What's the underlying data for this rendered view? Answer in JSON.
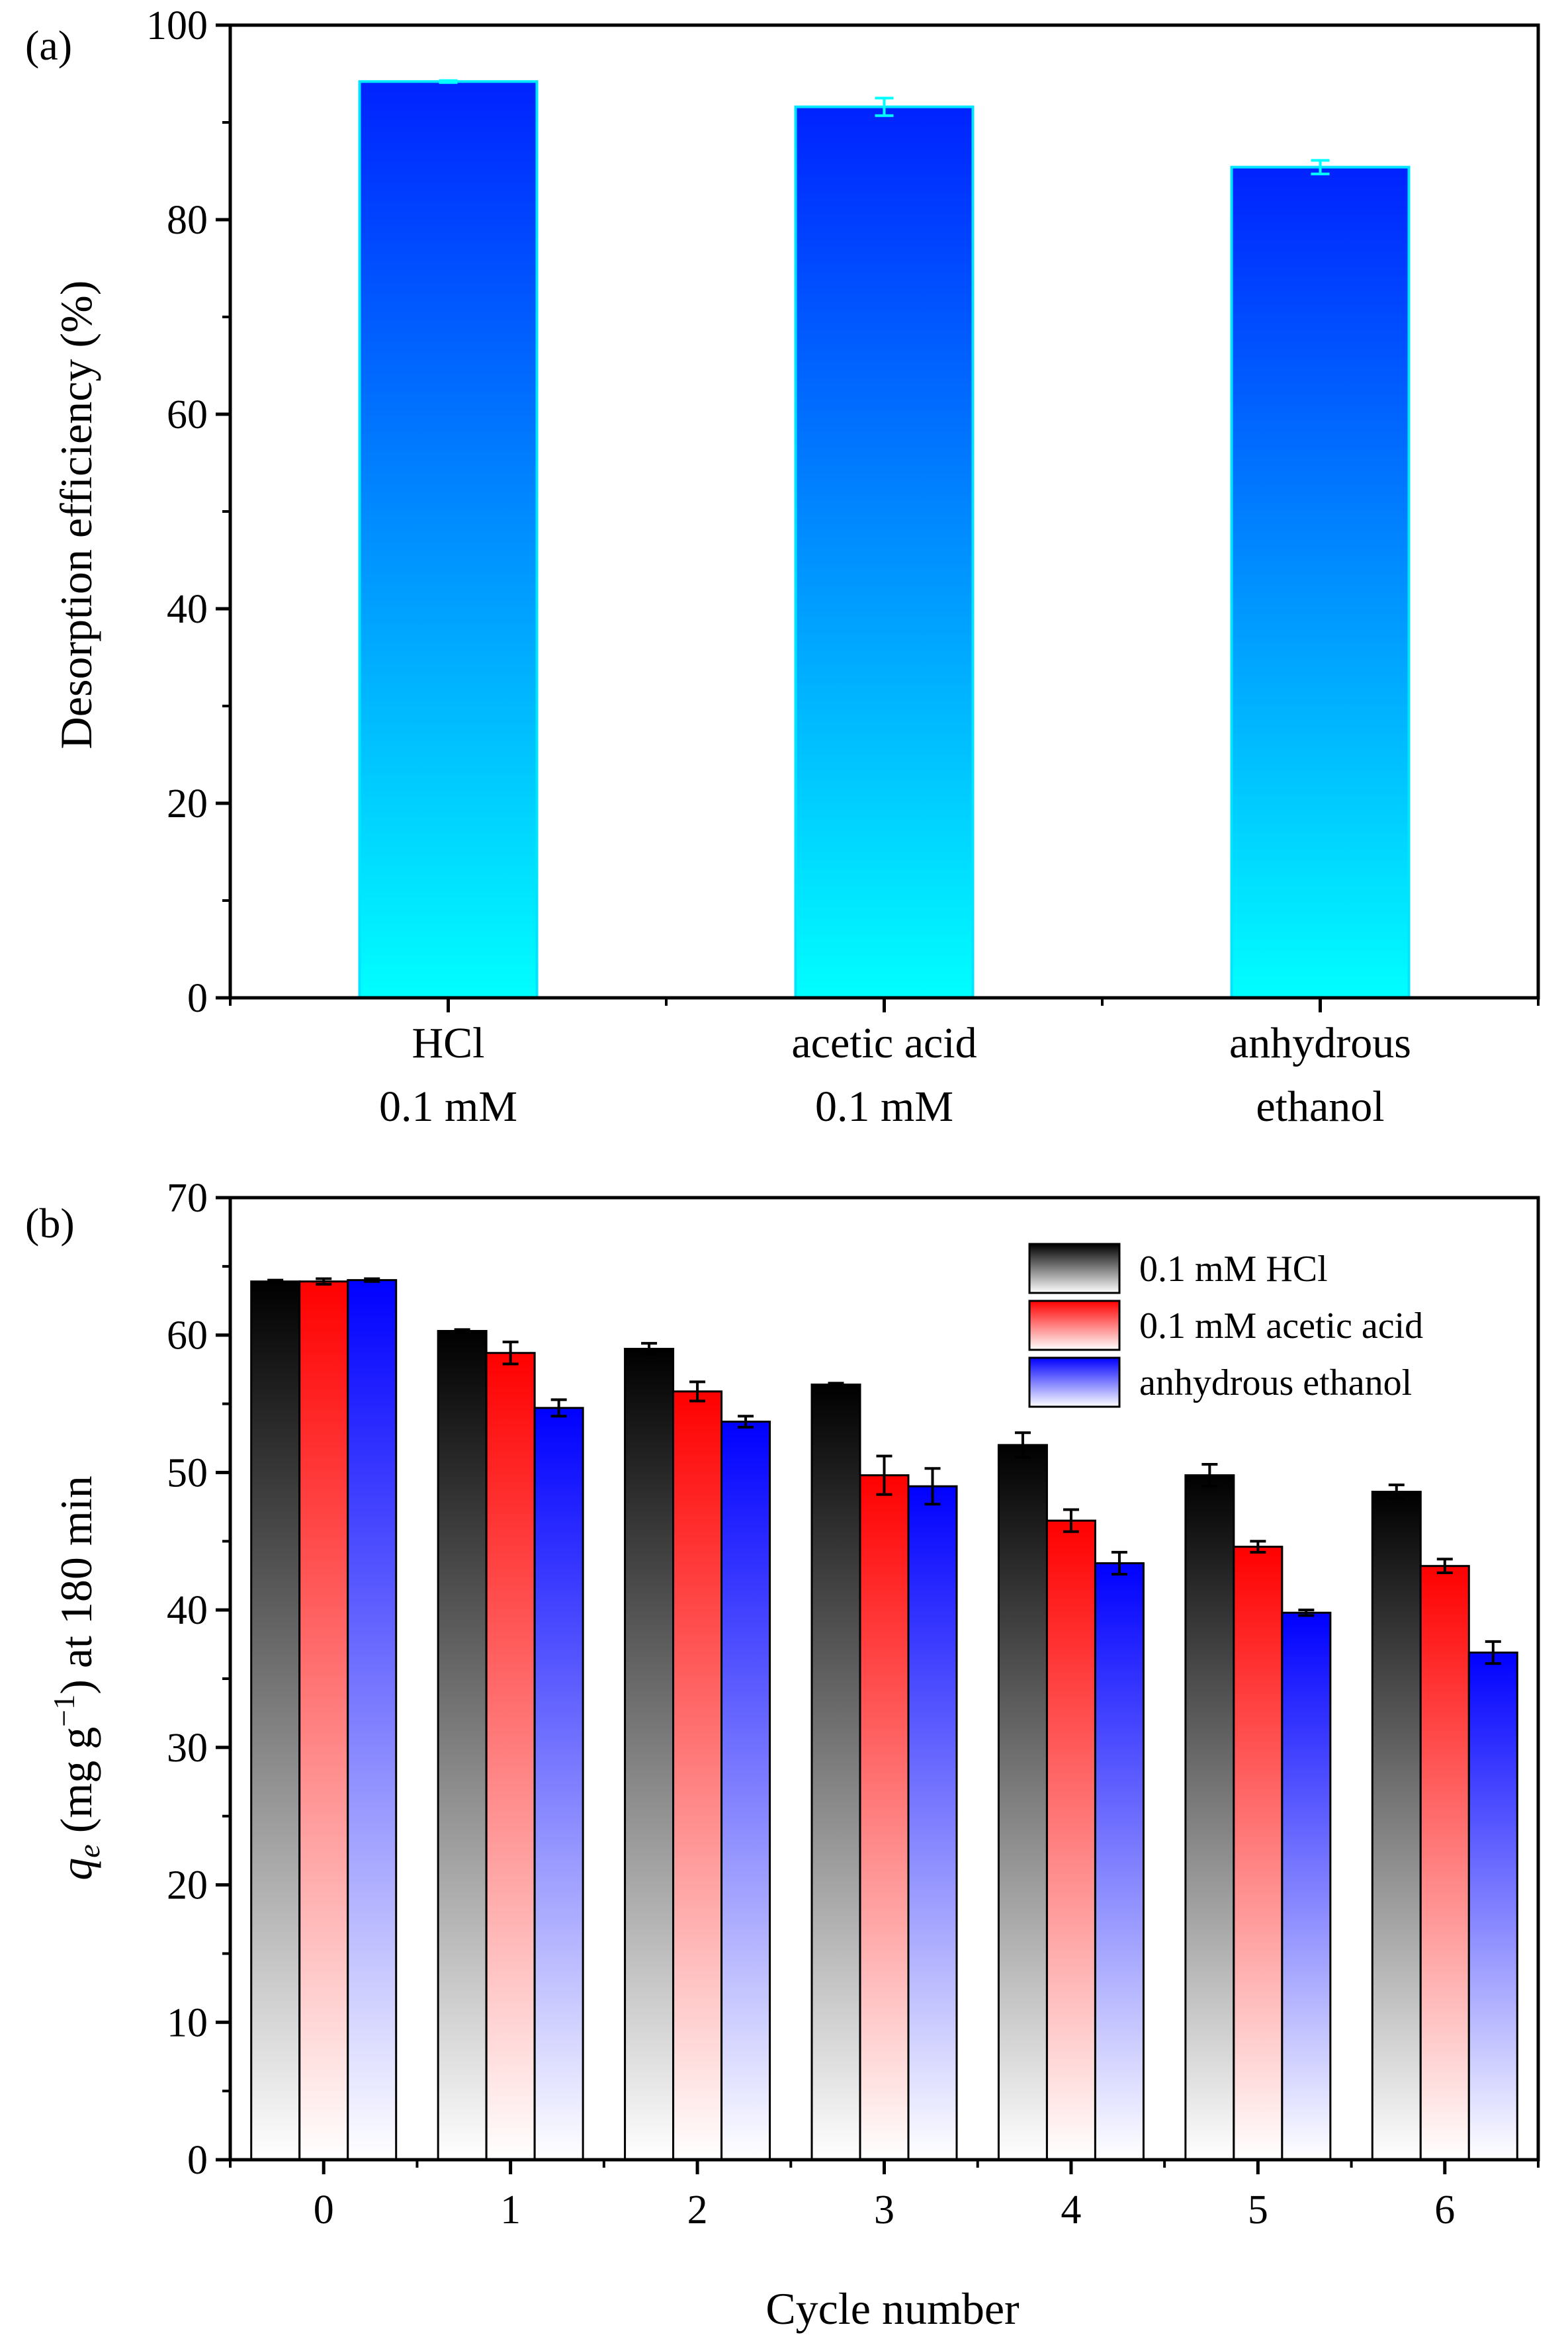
{
  "chart_data": [
    {
      "type": "bar",
      "panel_label": "(a)",
      "title": "",
      "xlabel": "",
      "ylabel": "Desorption efficiency (%)",
      "ylim": [
        0,
        100
      ],
      "yticks": [
        0,
        20,
        40,
        60,
        80,
        100
      ],
      "grid": false,
      "categories": [
        {
          "line1": "HCl",
          "line2": "0.1 mM"
        },
        {
          "line1": "acetic acid",
          "line2": "0.1 mM"
        },
        {
          "line1": "anhydrous",
          "line2": "ethanol"
        }
      ],
      "values": [
        94.2,
        91.6,
        85.4
      ],
      "errors": [
        0.1,
        0.9,
        0.7
      ],
      "colors": {
        "top": "#0022ff",
        "bottom": "#00ffff",
        "edge": "#00e5ff",
        "errorbar": "#00ffff"
      }
    },
    {
      "type": "bar",
      "panel_label": "(b)",
      "title": "",
      "xlabel": "Cycle number",
      "ylabel": {
        "q": "q",
        "sub": "e",
        "unit_pre": " (mg g",
        "sup": "−1",
        "unit_post": ") at 180 min"
      },
      "ylim": [
        0,
        70
      ],
      "yticks": [
        0,
        10,
        20,
        30,
        40,
        50,
        60,
        70
      ],
      "grid": false,
      "legend_position": "top-right",
      "categories": [
        "0",
        "1",
        "2",
        "3",
        "4",
        "5",
        "6"
      ],
      "series": [
        {
          "name": "0.1 mM HCl",
          "values": [
            63.9,
            60.3,
            59.0,
            56.4,
            52.0,
            49.8,
            48.6
          ],
          "errors": [
            0.1,
            0.1,
            0.4,
            0.1,
            0.9,
            0.8,
            0.5
          ],
          "color_top": "#000000",
          "color_bottom": "#ffffff"
        },
        {
          "name": "0.1 mM acetic acid",
          "values": [
            63.9,
            58.7,
            55.9,
            49.8,
            46.5,
            44.6,
            43.2
          ],
          "errors": [
            0.2,
            0.8,
            0.7,
            1.4,
            0.8,
            0.4,
            0.5
          ],
          "color_top": "#ff0000",
          "color_bottom": "#ffffff"
        },
        {
          "name": "anhydrous ethanol",
          "values": [
            64.0,
            54.7,
            53.7,
            49.0,
            43.4,
            39.8,
            36.9
          ],
          "errors": [
            0.1,
            0.6,
            0.4,
            1.3,
            0.8,
            0.2,
            0.8
          ],
          "color_top": "#0000ff",
          "color_bottom": "#ffffff"
        }
      ]
    }
  ]
}
